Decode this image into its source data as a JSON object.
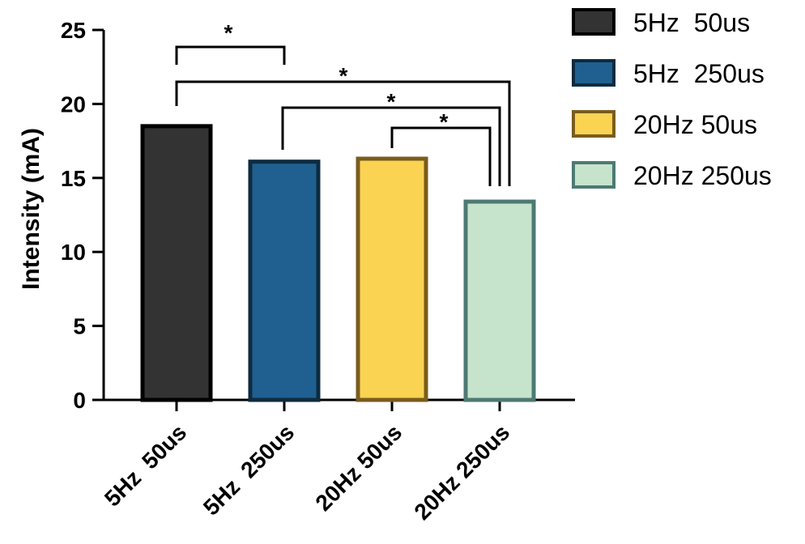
{
  "chart_data": {
    "type": "bar",
    "title": "",
    "xlabel": "",
    "ylabel": "Intensity (mA)",
    "ylim": [
      0,
      25
    ],
    "yticks": [
      0,
      5,
      10,
      15,
      20,
      25
    ],
    "categories": [
      "5Hz  50us",
      "5Hz  250us",
      "20Hz 50us",
      "20Hz 250us"
    ],
    "values": [
      18.5,
      16.1,
      16.3,
      13.4
    ],
    "colors": {
      "fill": [
        "#333333",
        "#1f6090",
        "#fbd353",
        "#c6e4cc"
      ],
      "stroke": [
        "#000000",
        "#0d2b40",
        "#7a5c1e",
        "#4d7a72"
      ]
    },
    "legend": {
      "position": "top-right",
      "entries": [
        "5Hz  50us",
        "5Hz  250us",
        "20Hz 50us",
        "20Hz 250us"
      ]
    },
    "grid": false,
    "significance": [
      {
        "from": 0,
        "to": 1,
        "label": "*"
      },
      {
        "from": 0,
        "to": 3,
        "label": "*"
      },
      {
        "from": 1,
        "to": 3,
        "label": "*"
      },
      {
        "from": 2,
        "to": 3,
        "label": "*"
      }
    ]
  }
}
